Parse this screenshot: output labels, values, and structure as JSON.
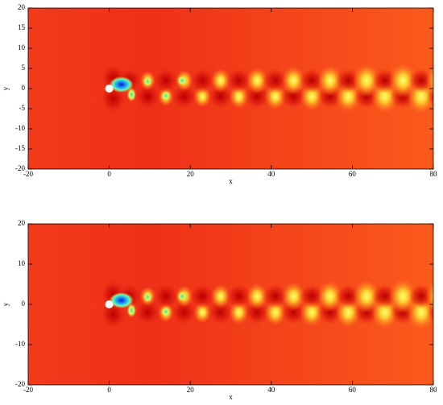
{
  "chart_data": [
    {
      "type": "contour",
      "xlabel": "x",
      "ylabel": "y",
      "xlim": [
        -20,
        80
      ],
      "ylim": [
        -20,
        20
      ],
      "xticks": [
        -20,
        0,
        20,
        40,
        60,
        80
      ],
      "yticks": [
        -20,
        -15,
        -10,
        -5,
        0,
        5,
        10,
        15,
        20
      ]
    },
    {
      "type": "contour",
      "xlabel": "x",
      "ylabel": "y",
      "xlim": [
        -20,
        80
      ],
      "ylim": [
        -20,
        20
      ],
      "xticks": [
        -20,
        0,
        20,
        40,
        60,
        80
      ],
      "yticks": [
        -20,
        -10,
        0,
        10,
        20
      ]
    }
  ]
}
